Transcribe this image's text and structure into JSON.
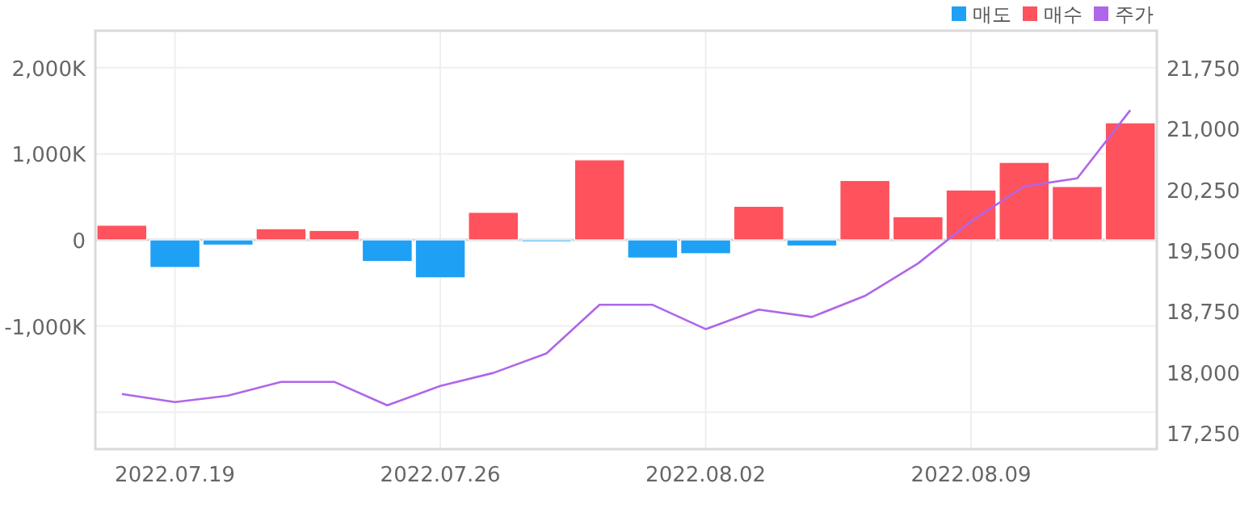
{
  "chart_data": {
    "type": "bar",
    "stacked": true,
    "grid": true,
    "legend": "top right",
    "categories": [
      null,
      "2022.07.19",
      null,
      null,
      null,
      null,
      "2022.07.26",
      null,
      null,
      null,
      null,
      "2022.08.02",
      null,
      null,
      null,
      null,
      "2022.08.09",
      null,
      null,
      null
    ],
    "series": [
      {
        "name": "매도",
        "color": "#1ea0f5",
        "values": [
          null,
          -320,
          -60,
          null,
          null,
          -250,
          -440,
          null,
          -20,
          null,
          -210,
          -160,
          null,
          -70,
          null,
          null,
          null,
          null,
          null,
          null
        ]
      },
      {
        "name": "매수",
        "color": "#fe525c",
        "values": [
          170,
          null,
          null,
          130,
          110,
          null,
          null,
          320,
          null,
          930,
          null,
          null,
          390,
          null,
          690,
          270,
          580,
          900,
          620,
          1360
        ]
      },
      {
        "name": "주가",
        "type": "line",
        "axis": "y2",
        "color": "#b066e8",
        "values": [
          17730,
          17630,
          17710,
          17880,
          17880,
          17590,
          17830,
          17990,
          18230,
          18830,
          18830,
          18530,
          18770,
          18680,
          18940,
          19340,
          19860,
          20290,
          20390,
          21230
        ]
      }
    ],
    "ylim": [
      -2430,
      2430
    ],
    "yticks": [
      {
        "value": 2000,
        "label": "2,000K"
      },
      {
        "value": 1000,
        "label": "1,000K"
      },
      0,
      {
        "value": -1000,
        "label": "-1,000K"
      },
      {
        "value": -2000,
        "label": null
      }
    ],
    "y2lim": [
      17050,
      22210
    ],
    "y2ticks": [
      {
        "value": 21750,
        "label": "21,750"
      },
      {
        "value": 21000,
        "label": "21,000"
      },
      {
        "value": 20250,
        "label": "20,250"
      },
      {
        "value": 19500,
        "label": "19,500"
      },
      {
        "value": 18750,
        "label": "18,750"
      },
      {
        "value": 18000,
        "label": "18,000"
      },
      {
        "value": 17250,
        "label": "17,250"
      }
    ]
  }
}
